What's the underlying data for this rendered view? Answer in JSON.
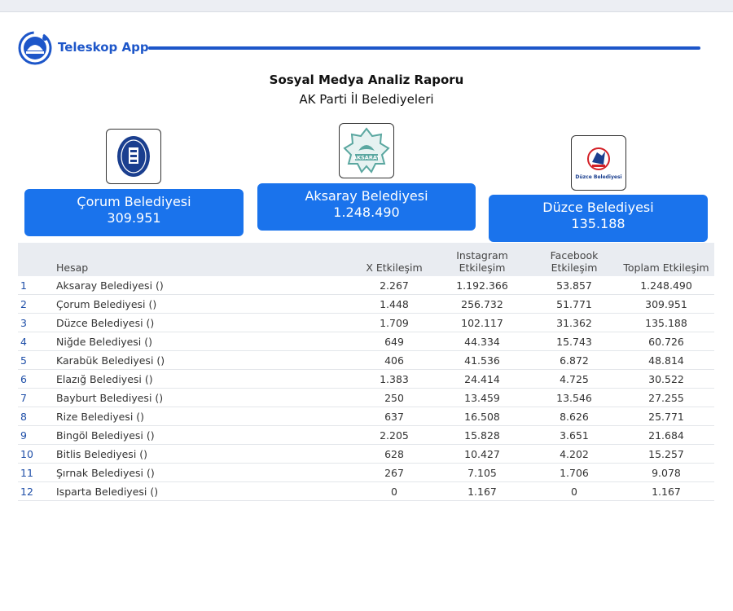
{
  "header": {
    "app_name": "Teleskop App",
    "brand_color": "#1d56c9"
  },
  "report": {
    "title": "Sosyal Medya Analiz Raporu",
    "subtitle": "AK Parti İl Belediyeleri"
  },
  "cards": [
    {
      "name": "Çorum Belediyesi",
      "value": "309.951",
      "logo_icon": "corum-municipality-seal-icon"
    },
    {
      "name": "Aksaray Belediyesi",
      "value": "1.248.490",
      "logo_icon": "aksaray-municipality-seal-icon",
      "logo_text": "AKSARAY"
    },
    {
      "name": "Düzce Belediyesi",
      "value": "135.188",
      "logo_icon": "duzce-municipality-seal-icon",
      "logo_text": "Düzce Belediyesi"
    }
  ],
  "card_color": "#1a73ec",
  "table": {
    "headers": {
      "account": "Hesap",
      "x": "X Etkileşim",
      "instagram_1": "Instagram",
      "instagram_2": "Etkileşim",
      "facebook_1": "Facebook",
      "facebook_2": "Etkileşim",
      "total": "Toplam Etkileşim"
    },
    "rows": [
      {
        "idx": "1",
        "name": "Aksaray Belediyesi ()",
        "x": "2.267",
        "ig": "1.192.366",
        "fb": "53.857",
        "total": "1.248.490"
      },
      {
        "idx": "2",
        "name": "Çorum Belediyesi ()",
        "x": "1.448",
        "ig": "256.732",
        "fb": "51.771",
        "total": "309.951"
      },
      {
        "idx": "3",
        "name": "Düzce Belediyesi ()",
        "x": "1.709",
        "ig": "102.117",
        "fb": "31.362",
        "total": "135.188"
      },
      {
        "idx": "4",
        "name": "Niğde Belediyesi ()",
        "x": "649",
        "ig": "44.334",
        "fb": "15.743",
        "total": "60.726"
      },
      {
        "idx": "5",
        "name": "Karabük Belediyesi ()",
        "x": "406",
        "ig": "41.536",
        "fb": "6.872",
        "total": "48.814"
      },
      {
        "idx": "6",
        "name": "Elazığ Belediyesi ()",
        "x": "1.383",
        "ig": "24.414",
        "fb": "4.725",
        "total": "30.522"
      },
      {
        "idx": "7",
        "name": "Bayburt Belediyesi ()",
        "x": "250",
        "ig": "13.459",
        "fb": "13.546",
        "total": "27.255"
      },
      {
        "idx": "8",
        "name": "Rize Belediyesi ()",
        "x": "637",
        "ig": "16.508",
        "fb": "8.626",
        "total": "25.771"
      },
      {
        "idx": "9",
        "name": "Bingöl Belediyesi ()",
        "x": "2.205",
        "ig": "15.828",
        "fb": "3.651",
        "total": "21.684"
      },
      {
        "idx": "10",
        "name": "Bitlis Belediyesi ()",
        "x": "628",
        "ig": "10.427",
        "fb": "4.202",
        "total": "15.257"
      },
      {
        "idx": "11",
        "name": "Şırnak Belediyesi ()",
        "x": "267",
        "ig": "7.105",
        "fb": "1.706",
        "total": "9.078"
      },
      {
        "idx": "12",
        "name": "Isparta Belediyesi ()",
        "x": "0",
        "ig": "1.167",
        "fb": "0",
        "total": "1.167"
      }
    ]
  }
}
